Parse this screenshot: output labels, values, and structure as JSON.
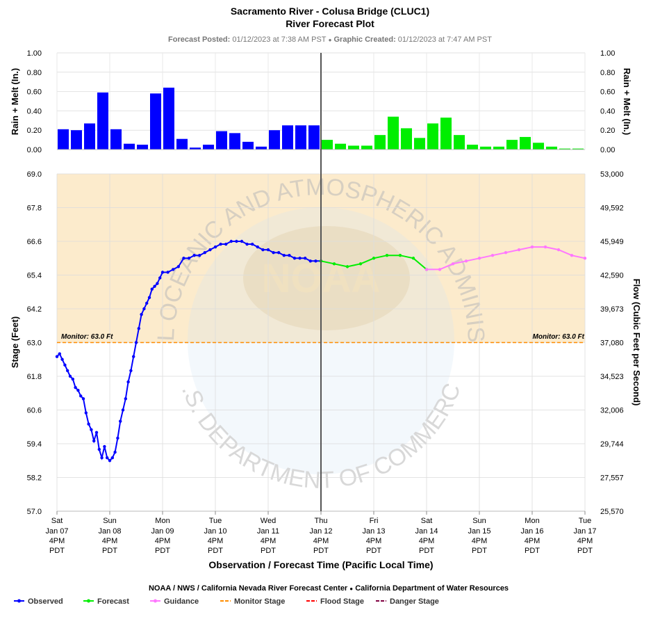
{
  "title": "Sacramento River - Colusa Bridge (CLUC1)",
  "subtitle": "River Forecast Plot",
  "posted_label": "Forecast Posted:",
  "posted_value": "01/12/2023 at 7:38 AM PST",
  "separator": "●",
  "created_label": "Graphic Created:",
  "created_value": "01/12/2023 at 7:47 AM PST",
  "watermark": {
    "ring_top": "NATIONAL OCEANIC AND ATMOSPHERIC ADMINISTRATION",
    "ring_bottom": "U.S. DEPARTMENT OF COMMERCE",
    "logo": "NOAA"
  },
  "credit": {
    "left": "NOAA / NWS / California Nevada River Forecast Center",
    "dot": "●",
    "right": "California Department of Water Resources"
  },
  "legend": [
    {
      "label": "Observed",
      "color": "#0000ff",
      "style": "line-dot"
    },
    {
      "label": "Forecast",
      "color": "#00ee00",
      "style": "line-dot"
    },
    {
      "label": "Guidance",
      "color": "#ff77ff",
      "style": "line-dot"
    },
    {
      "label": "Monitor Stage",
      "color": "#ff8c00",
      "style": "dash"
    },
    {
      "label": "Flood Stage",
      "color": "#ff0000",
      "style": "dash"
    },
    {
      "label": "Danger Stage",
      "color": "#800040",
      "style": "dash"
    }
  ],
  "chart_data": [
    {
      "type": "bar",
      "ylabel": "Rain + Melt (In.)",
      "ylabel_right": "Rain + Melt (In.)",
      "ylim": [
        0,
        1
      ],
      "yticks": [
        "0.00",
        "0.20",
        "0.40",
        "0.60",
        "0.80",
        "1.00"
      ],
      "grid": true,
      "series": [
        {
          "name": "Observed",
          "color": "#0000ff",
          "values": [
            0.21,
            0.2,
            0.27,
            0.59,
            0.21,
            0.06,
            0.05,
            0.58,
            0.64,
            0.11,
            0.02,
            0.05,
            0.19,
            0.17,
            0.08,
            0.03,
            0.2,
            0.25,
            0.25,
            0.25
          ]
        },
        {
          "name": "Forecast",
          "color": "#00ee00",
          "values": [
            0.1,
            0.06,
            0.04,
            0.04,
            0.15,
            0.34,
            0.22,
            0.12,
            0.27,
            0.33,
            0.15,
            0.05,
            0.03,
            0.03,
            0.1,
            0.13,
            0.07,
            0.03,
            0.01,
            0.01
          ]
        }
      ]
    },
    {
      "type": "line",
      "ylabel": "Stage (Feet)",
      "ylabel_right": "Flow (Cubic Feet per Second)",
      "xlabel": "Observation / Forecast Time (Pacific Local Time)",
      "ylim": [
        57.0,
        69.0
      ],
      "yticks": [
        "57.0",
        "58.2",
        "59.4",
        "60.6",
        "61.8",
        "63.0",
        "64.2",
        "65.4",
        "66.6",
        "67.8",
        "69.0"
      ],
      "yticks_right": [
        "25,570",
        "27,557",
        "29,744",
        "32,006",
        "34,523",
        "37,080",
        "39,673",
        "42,590",
        "45,949",
        "49,592",
        "53,000"
      ],
      "x_range_days": [
        0,
        10
      ],
      "x_ticks": [
        {
          "l1": "Sat",
          "l2": "Jan 07",
          "l3": "4PM",
          "l4": "PDT"
        },
        {
          "l1": "Sun",
          "l2": "Jan 08",
          "l3": "4PM",
          "l4": "PDT"
        },
        {
          "l1": "Mon",
          "l2": "Jan 09",
          "l3": "4PM",
          "l4": "PDT"
        },
        {
          "l1": "Tue",
          "l2": "Jan 10",
          "l3": "4PM",
          "l4": "PDT"
        },
        {
          "l1": "Wed",
          "l2": "Jan 11",
          "l3": "4PM",
          "l4": "PDT"
        },
        {
          "l1": "Thu",
          "l2": "Jan 12",
          "l3": "4PM",
          "l4": "PDT"
        },
        {
          "l1": "Fri",
          "l2": "Jan 13",
          "l3": "4PM",
          "l4": "PDT"
        },
        {
          "l1": "Sat",
          "l2": "Jan 14",
          "l3": "4PM",
          "l4": "PDT"
        },
        {
          "l1": "Sun",
          "l2": "Jan 15",
          "l3": "4PM",
          "l4": "PDT"
        },
        {
          "l1": "Mon",
          "l2": "Jan 16",
          "l3": "4PM",
          "l4": "PDT"
        },
        {
          "l1": "Tue",
          "l2": "Jan 17",
          "l3": "4PM",
          "l4": "PDT"
        }
      ],
      "now_marker_day": 5,
      "monitor_stage": 63.0,
      "monitor_label": "Monitor: 63.0 Ft",
      "grid": true,
      "series": [
        {
          "name": "Observed",
          "color": "#0000ff",
          "x": [
            0.0,
            0.05,
            0.1,
            0.15,
            0.2,
            0.25,
            0.3,
            0.35,
            0.4,
            0.45,
            0.5,
            0.55,
            0.6,
            0.65,
            0.7,
            0.75,
            0.8,
            0.85,
            0.9,
            0.95,
            1.0,
            1.05,
            1.1,
            1.15,
            1.2,
            1.25,
            1.3,
            1.35,
            1.4,
            1.45,
            1.5,
            1.55,
            1.6,
            1.65,
            1.7,
            1.75,
            1.8,
            1.85,
            1.9,
            1.95,
            2.0,
            2.1,
            2.2,
            2.3,
            2.4,
            2.5,
            2.6,
            2.7,
            2.8,
            2.9,
            3.0,
            3.1,
            3.2,
            3.3,
            3.4,
            3.5,
            3.6,
            3.7,
            3.8,
            3.9,
            4.0,
            4.1,
            4.2,
            4.3,
            4.4,
            4.5,
            4.6,
            4.7,
            4.8,
            4.9,
            5.0
          ],
          "y": [
            62.5,
            62.6,
            62.4,
            62.2,
            62.0,
            61.8,
            61.7,
            61.4,
            61.3,
            61.1,
            61.0,
            60.5,
            60.1,
            59.9,
            59.5,
            59.8,
            59.2,
            58.9,
            59.3,
            58.9,
            58.8,
            58.9,
            59.1,
            59.6,
            60.2,
            60.6,
            61.0,
            61.6,
            62.0,
            62.5,
            63.0,
            63.5,
            64.0,
            64.2,
            64.4,
            64.6,
            64.9,
            65.0,
            65.1,
            65.3,
            65.5,
            65.5,
            65.6,
            65.7,
            66.0,
            66.0,
            66.1,
            66.1,
            66.2,
            66.3,
            66.4,
            66.5,
            66.5,
            66.6,
            66.6,
            66.6,
            66.5,
            66.5,
            66.4,
            66.3,
            66.3,
            66.2,
            66.2,
            66.1,
            66.1,
            66.0,
            66.0,
            66.0,
            65.9,
            65.9,
            65.9
          ]
        },
        {
          "name": "Forecast",
          "color": "#00ee00",
          "x": [
            5.0,
            5.25,
            5.5,
            5.75,
            6.0,
            6.25,
            6.5,
            6.75,
            7.0
          ],
          "y": [
            65.9,
            65.8,
            65.7,
            65.8,
            66.0,
            66.1,
            66.1,
            66.0,
            65.6
          ]
        },
        {
          "name": "Guidance",
          "color": "#ff77ff",
          "x": [
            7.0,
            7.25,
            7.5,
            7.75,
            8.0,
            8.25,
            8.5,
            8.75,
            9.0,
            9.25,
            9.5,
            9.75,
            10.0
          ],
          "y": [
            65.6,
            65.6,
            65.8,
            65.9,
            66.0,
            66.1,
            66.2,
            66.3,
            66.4,
            66.4,
            66.3,
            66.1,
            66.0
          ]
        }
      ]
    }
  ]
}
